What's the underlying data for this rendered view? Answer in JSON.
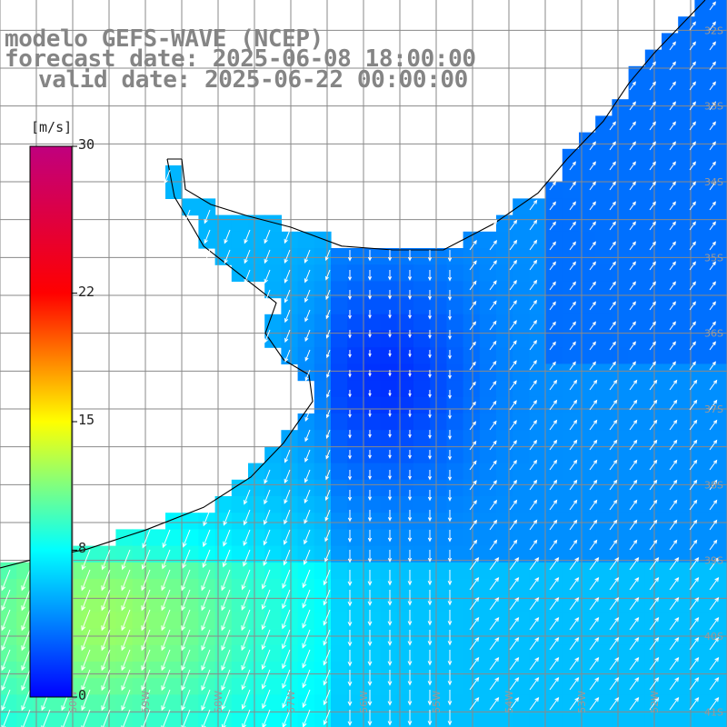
{
  "title": {
    "line1": "modelo GEFS-WAVE (NCEP)",
    "line2": "forecast date: 2025-06-08 18:00:00",
    "line3": "valid date: 2025-06-22 00:00:00"
  },
  "colorbar": {
    "unit": "[m/s]",
    "min": 0,
    "max": 30,
    "tick_labels": [
      "30",
      "22",
      "15",
      "8",
      "0"
    ],
    "tick_values": [
      30,
      22,
      15,
      8,
      0
    ],
    "stops": [
      {
        "value": 0,
        "color": "#0000ff"
      },
      {
        "value": 8,
        "color": "#00ffff"
      },
      {
        "value": 15,
        "color": "#ffff00"
      },
      {
        "value": 22,
        "color": "#ff0000"
      },
      {
        "value": 30,
        "color": "#c0007e"
      }
    ]
  },
  "map": {
    "lon_range": [
      -61,
      -51
    ],
    "lat_range": [
      -41.2,
      -31.6
    ],
    "latitude_labels": [
      "32S",
      "33S",
      "34S",
      "35S",
      "36S",
      "37S",
      "38S",
      "39S",
      "40S",
      "41S"
    ],
    "longitude_labels": [
      "61W",
      "60W",
      "59W",
      "58W",
      "57W",
      "56W",
      "55W",
      "54W",
      "53W",
      "52W",
      "51W"
    ],
    "vector_color": "#ffffff",
    "coastline_color": "#000000",
    "grid_color": "#8a8a8a"
  }
}
